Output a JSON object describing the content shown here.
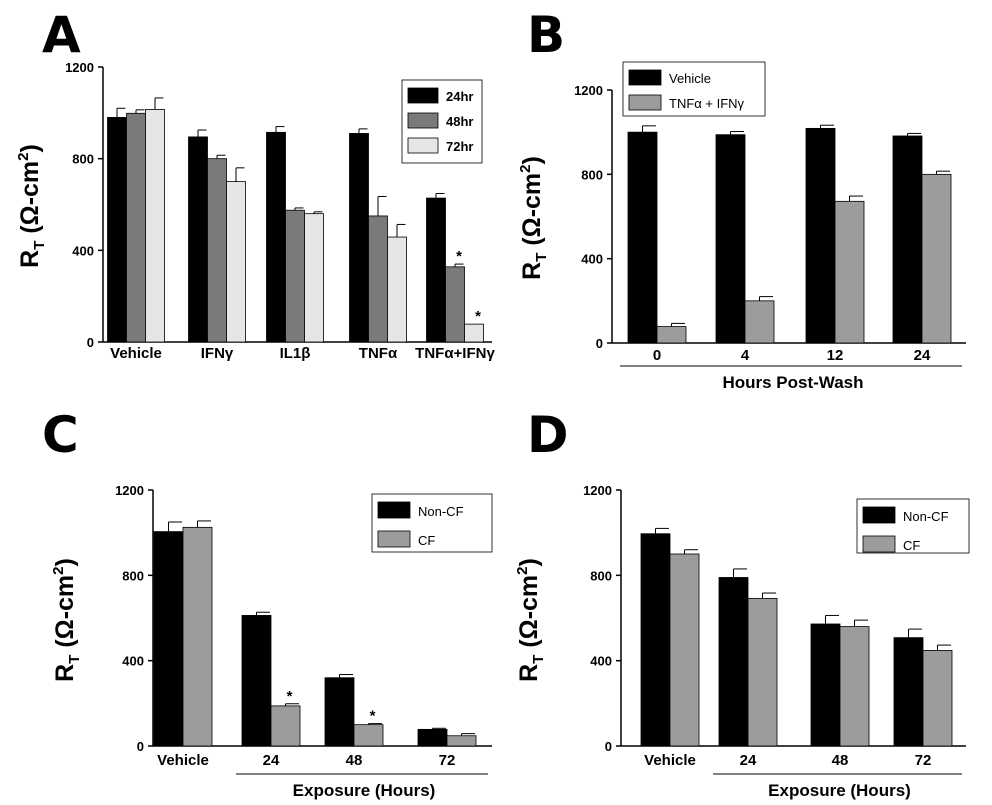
{
  "colors": {
    "black": "#000000",
    "dark_gray": "#7a7a7a",
    "light_gray": "#e6e6e6",
    "mid_gray": "#9c9c9c"
  },
  "chart_data": [
    {
      "panel": "A",
      "type": "bar",
      "ylabel_main": "R",
      "ylabel_sub": "T",
      "ylabel_unit": "(Ω-cm",
      "ylabel_sup": "2",
      "ylabel_close": ")",
      "ylim": [
        0,
        1200
      ],
      "yticks": [
        "0",
        "400",
        "800",
        "1200"
      ],
      "xlabel": "",
      "categories": [
        "Vehicle",
        "IFNγ",
        "IL1β",
        "TNFα",
        "TNFα+IFNγ"
      ],
      "legend_position": "top-right",
      "series": [
        {
          "name": "24hr",
          "color": "#000000",
          "values": [
            980,
            895,
            915,
            910,
            628
          ],
          "errors": [
            40,
            30,
            25,
            20,
            20
          ],
          "stars": [
            false,
            false,
            false,
            false,
            false
          ]
        },
        {
          "name": "48hr",
          "color": "#7a7a7a",
          "values": [
            998,
            800,
            575,
            550,
            328
          ],
          "errors": [
            15,
            15,
            10,
            85,
            12
          ],
          "stars": [
            false,
            false,
            false,
            false,
            true
          ]
        },
        {
          "name": "72hr",
          "color": "#e6e6e6",
          "values": [
            1015,
            700,
            560,
            458,
            78
          ],
          "errors": [
            50,
            60,
            8,
            55,
            0
          ],
          "stars": [
            false,
            false,
            false,
            false,
            true
          ]
        }
      ]
    },
    {
      "panel": "B",
      "type": "bar",
      "ylabel_main": "R",
      "ylabel_sub": "T",
      "ylabel_unit": "(Ω-cm",
      "ylabel_sup": "2",
      "ylabel_close": ")",
      "ylim": [
        0,
        1200
      ],
      "yticks": [
        "0",
        "400",
        "800",
        "1200"
      ],
      "xlabel": "Hours Post-Wash",
      "categories": [
        "0",
        "4",
        "12",
        "24"
      ],
      "legend_position": "top-left",
      "series": [
        {
          "name": "Vehicle",
          "color": "#000000",
          "values": [
            1000,
            988,
            1018,
            982
          ],
          "errors": [
            30,
            15,
            15,
            12
          ],
          "stars": [
            false,
            false,
            false,
            false
          ]
        },
        {
          "name": "TNFα + IFNγ",
          "color": "#9c9c9c",
          "values": [
            78,
            200,
            672,
            800
          ],
          "errors": [
            15,
            20,
            25,
            15
          ],
          "stars": [
            false,
            false,
            false,
            false
          ]
        }
      ]
    },
    {
      "panel": "C",
      "type": "bar",
      "ylabel_main": "R",
      "ylabel_sub": "T",
      "ylabel_unit": "(Ω-cm",
      "ylabel_sup": "2",
      "ylabel_close": ")",
      "ylim": [
        0,
        1200
      ],
      "yticks": [
        "0",
        "400",
        "800",
        "1200"
      ],
      "xlabel": "Exposure (Hours)",
      "categories": [
        "Vehicle",
        "24",
        "48",
        "72"
      ],
      "legend_position": "top-right",
      "series": [
        {
          "name": "Non-CF",
          "color": "#000000",
          "values": [
            1005,
            612,
            320,
            78
          ],
          "errors": [
            45,
            15,
            15,
            5
          ],
          "stars": [
            false,
            false,
            false,
            false
          ]
        },
        {
          "name": "CF",
          "color": "#9c9c9c",
          "values": [
            1025,
            188,
            100,
            48
          ],
          "errors": [
            30,
            10,
            5,
            10
          ],
          "stars": [
            false,
            true,
            true,
            false
          ]
        }
      ]
    },
    {
      "panel": "D",
      "type": "bar",
      "ylabel_main": "R",
      "ylabel_sub": "T",
      "ylabel_unit": "(Ω-cm",
      "ylabel_sup": "2",
      "ylabel_close": ")",
      "ylim": [
        0,
        1200
      ],
      "yticks": [
        "0",
        "400",
        "800",
        "1200"
      ],
      "xlabel": "Exposure (Hours)",
      "categories": [
        "Vehicle",
        "24",
        "48",
        "72"
      ],
      "legend_position": "top-right",
      "series": [
        {
          "name": "Non-CF",
          "color": "#000000",
          "values": [
            995,
            790,
            572,
            508
          ],
          "errors": [
            25,
            40,
            40,
            40
          ],
          "stars": [
            false,
            false,
            false,
            false
          ]
        },
        {
          "name": "CF",
          "color": "#9c9c9c",
          "values": [
            900,
            692,
            560,
            448
          ],
          "errors": [
            20,
            25,
            30,
            25
          ],
          "stars": [
            false,
            false,
            false,
            false
          ]
        }
      ]
    }
  ]
}
